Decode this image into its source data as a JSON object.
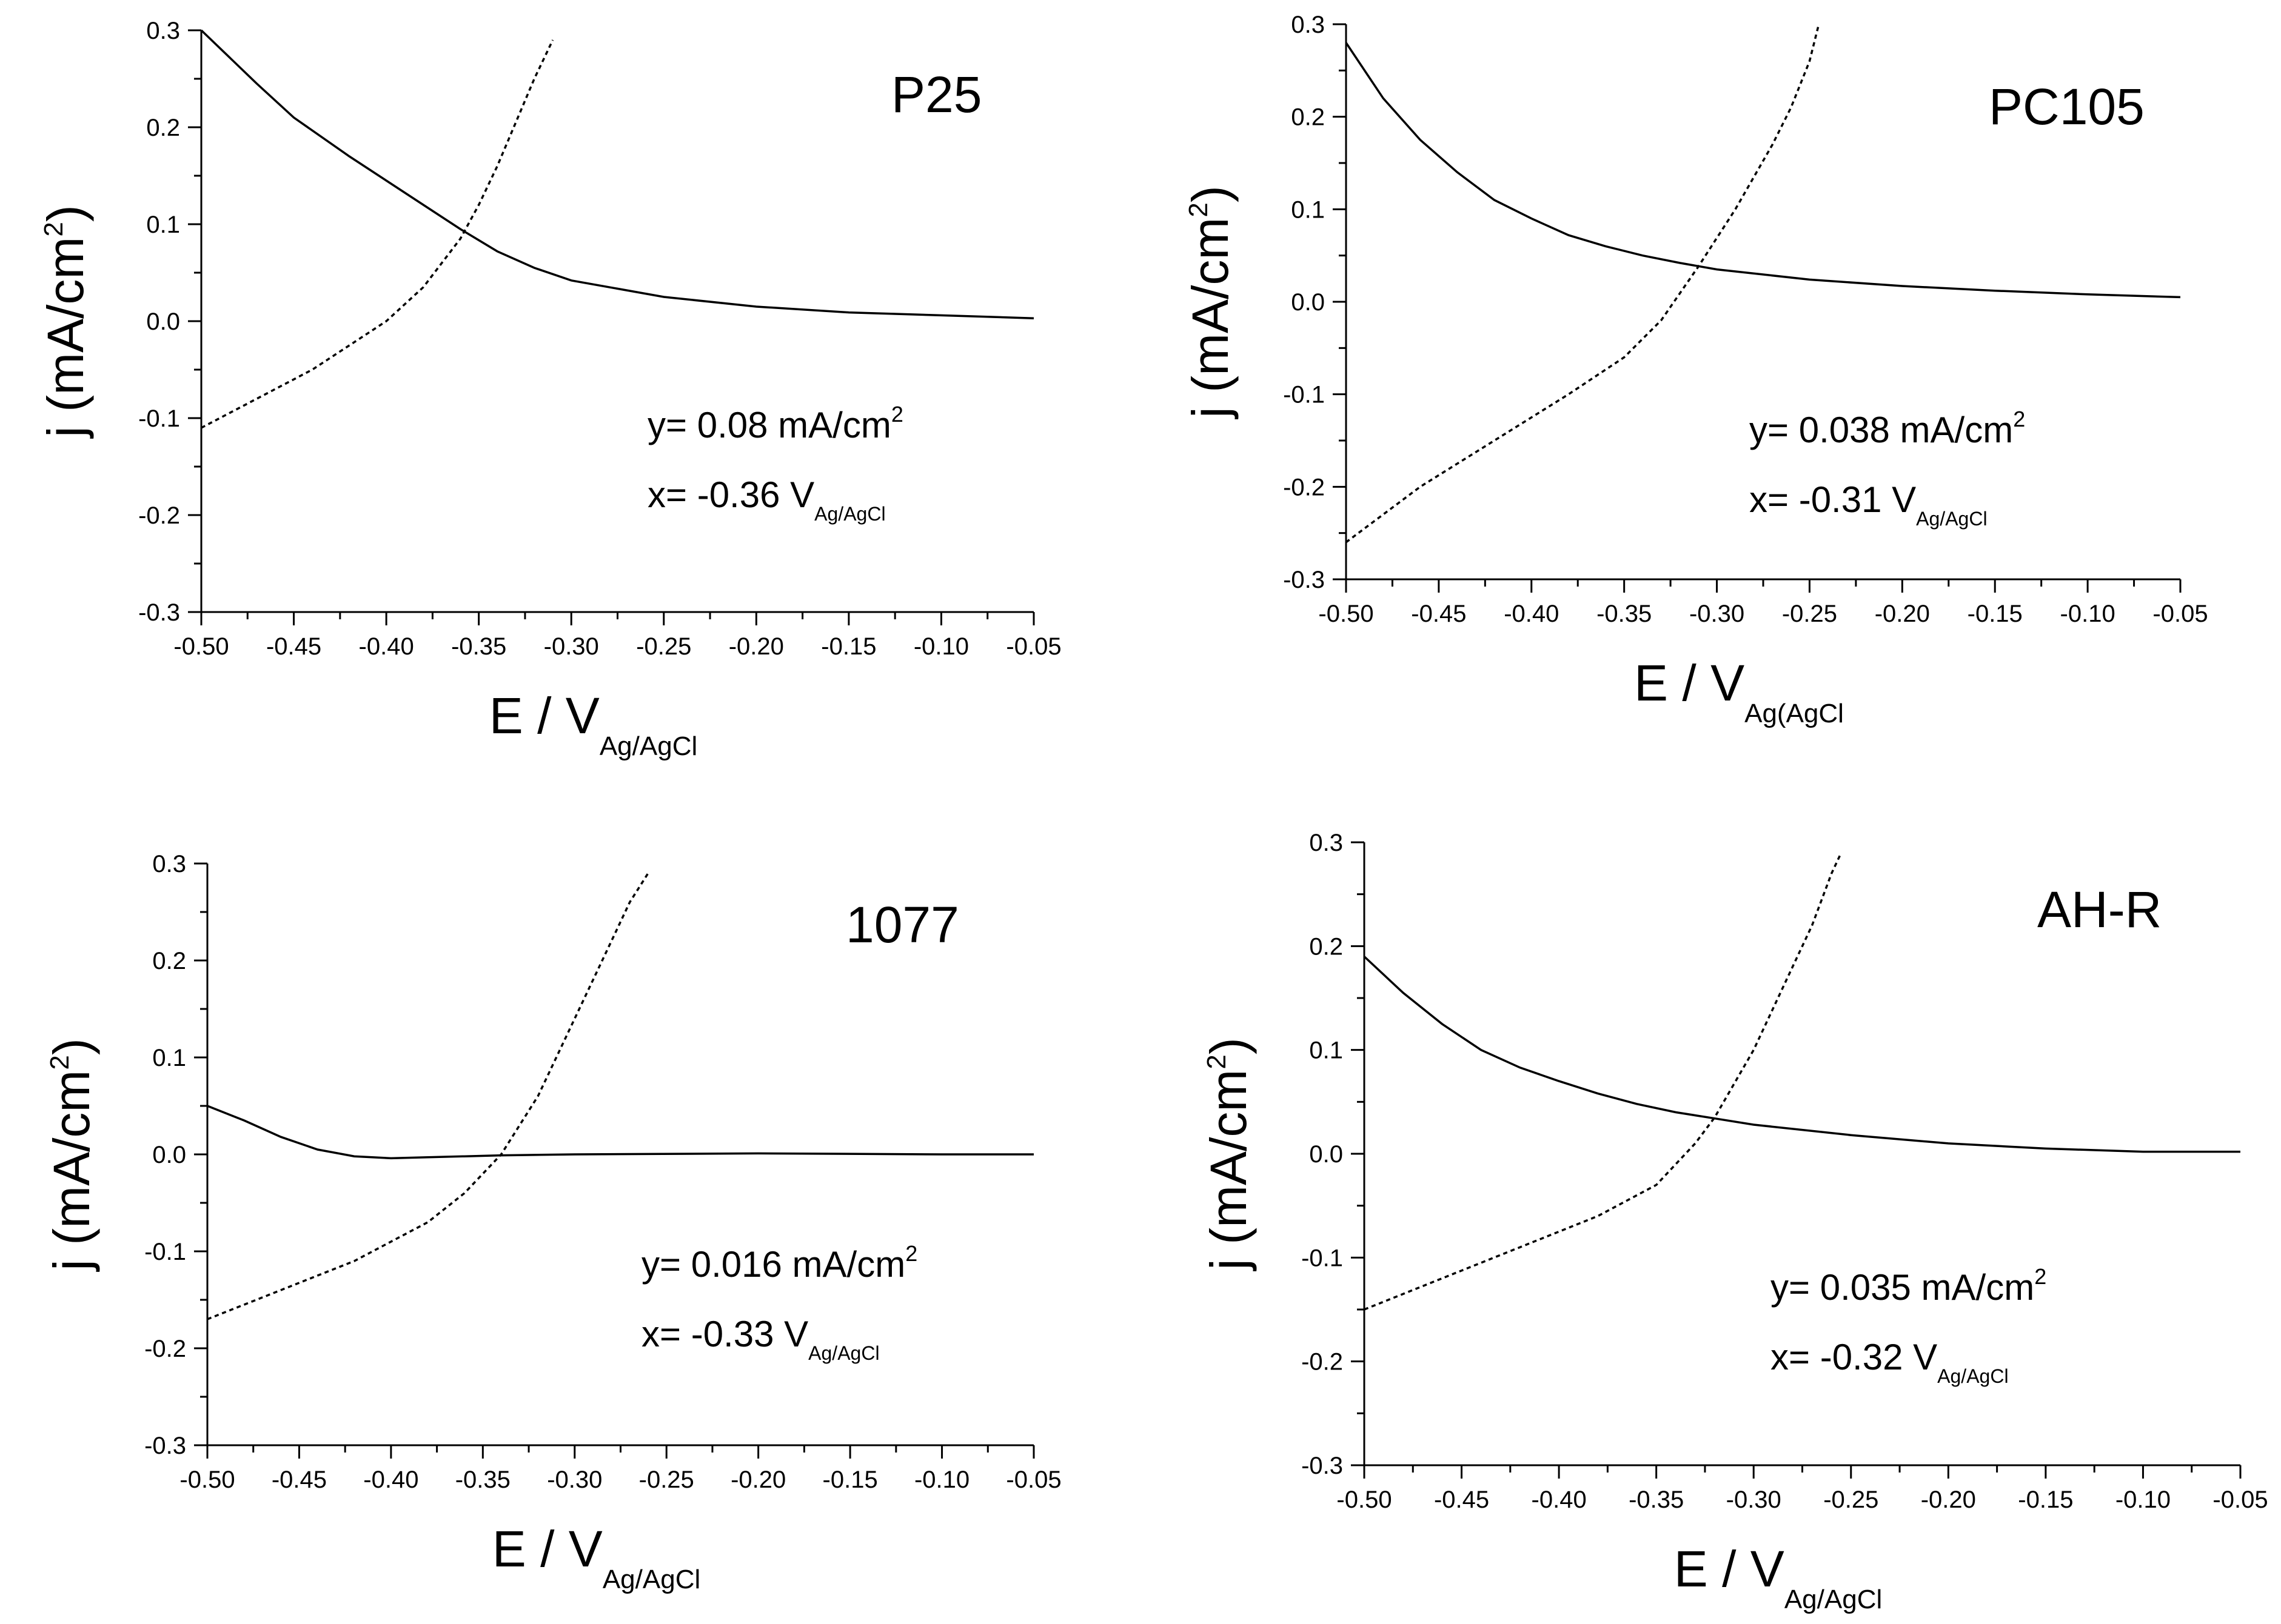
{
  "chart_data": [
    {
      "type": "line",
      "panel_label": "P25",
      "xlabel": "E / V",
      "xlabel_sub": "Ag/AgCl",
      "ylabel": "j (mA/cm",
      "ylabel_sup": "2",
      "ylabel_end": ")",
      "xlim": [
        -0.5,
        -0.05
      ],
      "ylim": [
        -0.3,
        0.3
      ],
      "x_ticks": [
        "-0.50",
        "-0.45",
        "-0.40",
        "-0.35",
        "-0.30",
        "-0.25",
        "-0.20",
        "-0.15",
        "-0.10",
        "-0.05"
      ],
      "y_ticks": [
        "0.3",
        "0.2",
        "0.1",
        "0.0",
        "-0.1",
        "-0.2",
        "-0.3"
      ],
      "annotation": {
        "y_text": "y= 0.08 mA/cm",
        "y_sup": "2",
        "x_text": "x= -0.36 V",
        "x_sub": "Ag/AgCl"
      },
      "series": [
        {
          "name": "solid",
          "x": [
            -0.5,
            -0.47,
            -0.45,
            -0.42,
            -0.4,
            -0.38,
            -0.36,
            -0.34,
            -0.32,
            -0.3,
            -0.25,
            -0.2,
            -0.15,
            -0.1,
            -0.05
          ],
          "y": [
            0.3,
            0.245,
            0.21,
            0.17,
            0.145,
            0.12,
            0.095,
            0.072,
            0.055,
            0.042,
            0.025,
            0.015,
            0.009,
            0.006,
            0.003
          ]
        },
        {
          "name": "dotted",
          "x": [
            -0.5,
            -0.47,
            -0.44,
            -0.42,
            -0.4,
            -0.38,
            -0.36,
            -0.35,
            -0.34,
            -0.33,
            -0.32,
            -0.31
          ],
          "y": [
            -0.11,
            -0.08,
            -0.05,
            -0.025,
            0.0,
            0.035,
            0.085,
            0.12,
            0.16,
            0.205,
            0.25,
            0.29
          ]
        }
      ]
    },
    {
      "type": "line",
      "panel_label": "PC105",
      "xlabel": "E / V",
      "xlabel_sub": "Ag(AgCl",
      "ylabel": "j (mA/cm",
      "ylabel_sup": "2",
      "ylabel_end": ")",
      "xlim": [
        -0.5,
        -0.05
      ],
      "ylim": [
        -0.3,
        0.3
      ],
      "x_ticks": [
        "-0.50",
        "-0.45",
        "-0.40",
        "-0.35",
        "-0.30",
        "-0.25",
        "-0.20",
        "-0.15",
        "-0.10",
        "-0.05"
      ],
      "y_ticks": [
        "0.3",
        "0.2",
        "0.1",
        "0.0",
        "-0.1",
        "-0.2",
        "-0.3"
      ],
      "annotation": {
        "y_text": "y= 0.038 mA/cm",
        "y_sup": "2",
        "x_text": "x= -0.31 V",
        "x_sub": "Ag/AgCl"
      },
      "series": [
        {
          "name": "solid",
          "x": [
            -0.5,
            -0.48,
            -0.46,
            -0.44,
            -0.42,
            -0.4,
            -0.38,
            -0.36,
            -0.34,
            -0.32,
            -0.3,
            -0.25,
            -0.2,
            -0.15,
            -0.1,
            -0.05
          ],
          "y": [
            0.28,
            0.22,
            0.175,
            0.14,
            0.11,
            0.09,
            0.072,
            0.06,
            0.05,
            0.042,
            0.035,
            0.024,
            0.017,
            0.012,
            0.008,
            0.005
          ]
        },
        {
          "name": "dotted",
          "x": [
            -0.5,
            -0.46,
            -0.42,
            -0.38,
            -0.35,
            -0.33,
            -0.31,
            -0.29,
            -0.27,
            -0.26,
            -0.25,
            -0.245
          ],
          "y": [
            -0.26,
            -0.2,
            -0.15,
            -0.1,
            -0.06,
            -0.02,
            0.038,
            0.1,
            0.17,
            0.21,
            0.26,
            0.3
          ]
        }
      ]
    },
    {
      "type": "line",
      "panel_label": "1077",
      "xlabel": "E / V",
      "xlabel_sub": "Ag/AgCl",
      "ylabel": "j (mA/cm",
      "ylabel_sup": "2",
      "ylabel_end": ")",
      "xlim": [
        -0.5,
        -0.05
      ],
      "ylim": [
        -0.3,
        0.3
      ],
      "x_ticks": [
        "-0.50",
        "-0.45",
        "-0.40",
        "-0.35",
        "-0.30",
        "-0.25",
        "-0.20",
        "-0.15",
        "-0.10",
        "-0.05"
      ],
      "y_ticks": [
        "0.3",
        "0.2",
        "0.1",
        "0.0",
        "-0.1",
        "-0.2",
        "-0.3"
      ],
      "annotation": {
        "y_text": "y= 0.016 mA/cm",
        "y_sup": "2",
        "x_text": "x= -0.33 V",
        "x_sub": "Ag/AgCl"
      },
      "series": [
        {
          "name": "solid",
          "x": [
            -0.5,
            -0.48,
            -0.46,
            -0.44,
            -0.42,
            -0.4,
            -0.38,
            -0.36,
            -0.34,
            -0.3,
            -0.2,
            -0.1,
            -0.05
          ],
          "y": [
            0.05,
            0.035,
            0.018,
            0.005,
            -0.002,
            -0.004,
            -0.003,
            -0.002,
            -0.001,
            0.0,
            0.001,
            0.0,
            0.0
          ]
        },
        {
          "name": "dotted",
          "x": [
            -0.5,
            -0.46,
            -0.42,
            -0.38,
            -0.36,
            -0.34,
            -0.32,
            -0.3,
            -0.28,
            -0.27,
            -0.26
          ],
          "y": [
            -0.17,
            -0.14,
            -0.11,
            -0.07,
            -0.04,
            0.0,
            0.06,
            0.14,
            0.22,
            0.26,
            0.29
          ]
        }
      ]
    },
    {
      "type": "line",
      "panel_label": "AH-R",
      "xlabel": "E / V",
      "xlabel_sub": "Ag/AgCl",
      "ylabel": "j (mA/cm",
      "ylabel_sup": "2",
      "ylabel_end": ")",
      "xlim": [
        -0.5,
        -0.05
      ],
      "ylim": [
        -0.3,
        0.3
      ],
      "x_ticks": [
        "-0.50",
        "-0.45",
        "-0.40",
        "-0.35",
        "-0.30",
        "-0.25",
        "-0.20",
        "-0.15",
        "-0.10",
        "-0.05"
      ],
      "y_ticks": [
        "0.3",
        "0.2",
        "0.1",
        "0.0",
        "-0.1",
        "-0.2",
        "-0.3"
      ],
      "annotation": {
        "y_text": "y= 0.035 mA/cm",
        "y_sup": "2",
        "x_text": "x= -0.32 V",
        "x_sub": "Ag/AgCl"
      },
      "series": [
        {
          "name": "solid",
          "x": [
            -0.5,
            -0.48,
            -0.46,
            -0.44,
            -0.42,
            -0.4,
            -0.38,
            -0.36,
            -0.34,
            -0.32,
            -0.3,
            -0.25,
            -0.2,
            -0.15,
            -0.1,
            -0.05
          ],
          "y": [
            0.19,
            0.155,
            0.125,
            0.1,
            0.083,
            0.07,
            0.058,
            0.048,
            0.04,
            0.034,
            0.028,
            0.018,
            0.01,
            0.005,
            0.002,
            0.002
          ]
        },
        {
          "name": "dotted",
          "x": [
            -0.5,
            -0.46,
            -0.42,
            -0.38,
            -0.35,
            -0.33,
            -0.32,
            -0.3,
            -0.28,
            -0.27,
            -0.26,
            -0.255
          ],
          "y": [
            -0.15,
            -0.12,
            -0.09,
            -0.06,
            -0.03,
            0.01,
            0.035,
            0.1,
            0.18,
            0.22,
            0.27,
            0.29
          ]
        }
      ]
    }
  ]
}
